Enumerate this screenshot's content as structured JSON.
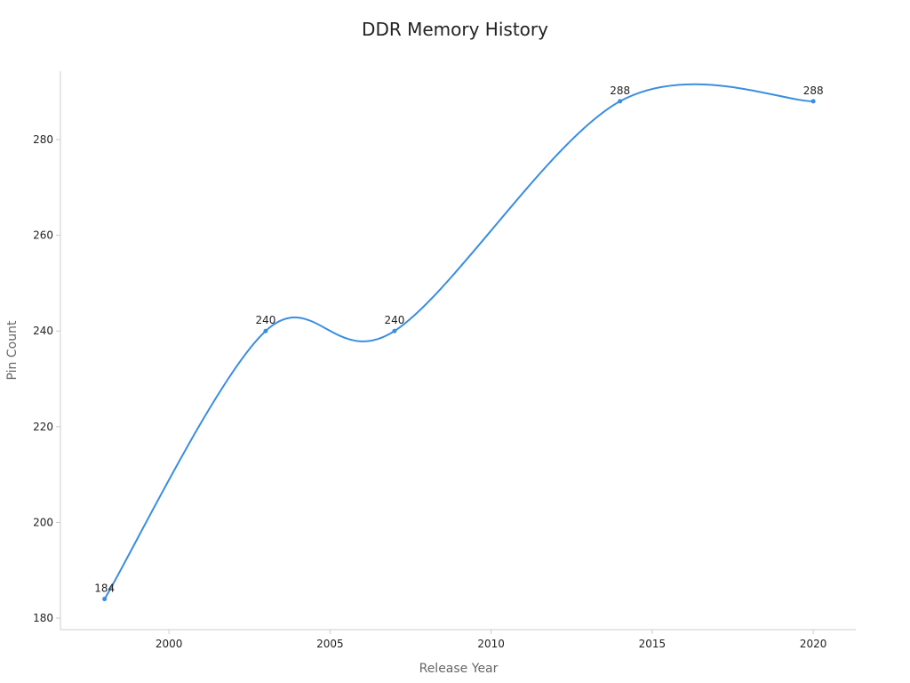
{
  "chart_data": {
    "type": "line",
    "title": "DDR Memory History",
    "x_label": "Release Year",
    "y_label": "Pin Count",
    "x": [
      1998,
      2003,
      2007,
      2014,
      2020
    ],
    "series": [
      {
        "name": "Pin Count",
        "color": "#3a8ee0",
        "values": [
          184,
          240,
          240,
          288,
          288
        ]
      }
    ],
    "xlim": [
      1996.63,
      2021.32
    ],
    "xticks": [
      2000,
      2005,
      2010,
      2015,
      2020
    ],
    "ylim": [
      177.6,
      294.3
    ],
    "yticks": [
      180,
      200,
      220,
      240,
      260,
      280
    ],
    "smooth": true,
    "data_labels": true,
    "grid": false
  }
}
